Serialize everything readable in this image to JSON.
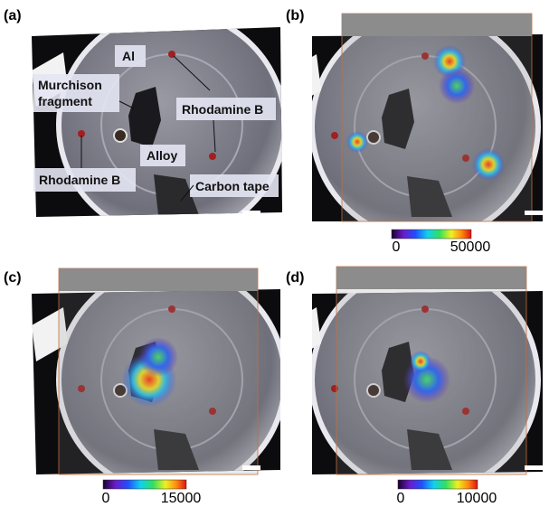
{
  "panels": [
    {
      "label": "(a)",
      "annotations": {
        "al": "Al",
        "murchison": [
          "Murchison",
          "fragment"
        ],
        "rhodamine_right": "Rhodamine B",
        "alloy": "Alloy",
        "rhodamine_left": "Rhodamine B",
        "carbon_tape": "Carbon tape"
      }
    },
    {
      "label": "(b)",
      "colorbar": {
        "ticks": [
          0,
          50000
        ]
      }
    },
    {
      "label": "(c)",
      "colorbar": {
        "ticks": [
          0,
          15000
        ]
      }
    },
    {
      "label": "(d)",
      "colorbar": {
        "ticks": [
          0,
          10000
        ]
      }
    }
  ]
}
